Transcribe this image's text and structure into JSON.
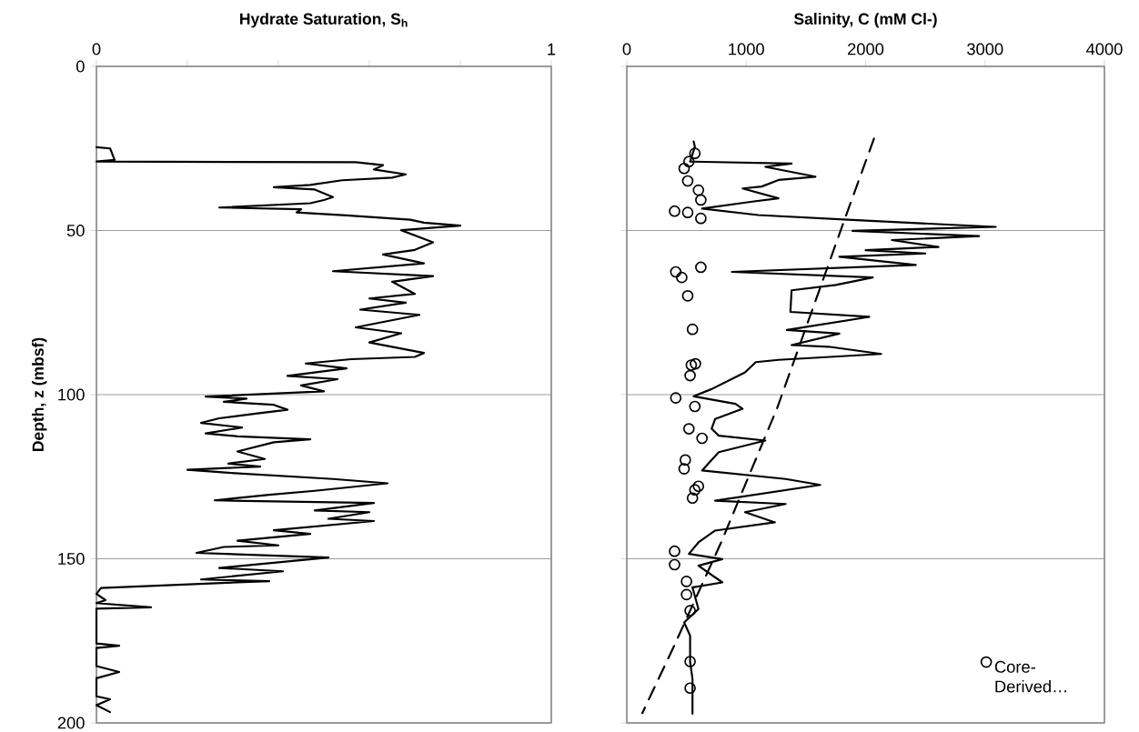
{
  "chart_data": [
    {
      "type": "line",
      "xlabel": "Hydrate Saturation, S$_{h}$",
      "ylabel": "Depth, z (mbsf)",
      "xlim": [
        0,
        1
      ],
      "xticks": [
        0,
        {
          "value": 0.2,
          "label": null
        },
        {
          "value": 0.4,
          "label": null
        },
        {
          "value": 0.6,
          "label": null
        },
        {
          "value": 0.8,
          "label": null
        },
        1
      ],
      "ylim": [
        200,
        0
      ],
      "yticks": [
        0,
        50,
        100,
        150,
        200
      ],
      "grid": "y",
      "series": [
        {
          "color": "#000000",
          "x": [
            0.0,
            0.03,
            0.04,
            0.0,
            0.57,
            0.63,
            0.61,
            0.68,
            0.65,
            0.54,
            0.47,
            0.39,
            0.48,
            0.52,
            0.5,
            0.47,
            0.27,
            0.45,
            0.44,
            0.55,
            0.69,
            0.72,
            0.8,
            0.67,
            0.74,
            0.7,
            0.63,
            0.72,
            0.52,
            0.74,
            0.65,
            0.7,
            0.6,
            0.68,
            0.58,
            0.71,
            0.57,
            0.67,
            0.6,
            0.72,
            0.7,
            0.56,
            0.46,
            0.55,
            0.42,
            0.53,
            0.45,
            0.5,
            0.24,
            0.33,
            0.28,
            0.39,
            0.42,
            0.35,
            0.27,
            0.23,
            0.32,
            0.24,
            0.31,
            0.47,
            0.39,
            0.31,
            0.37,
            0.29,
            0.36,
            0.2,
            0.29,
            0.52,
            0.64,
            0.48,
            0.38,
            0.26,
            0.61,
            0.48,
            0.6,
            0.51,
            0.61,
            0.39,
            0.47,
            0.31,
            0.4,
            0.28,
            0.22,
            0.51,
            0.27,
            0.41,
            0.23,
            0.38,
            0.01,
            0.0,
            0.02,
            0.0,
            0.12,
            0.0,
            0.0,
            0.05,
            0.0,
            0.0,
            0.05,
            0.0,
            0.0,
            0.03,
            0.0,
            0.03
          ],
          "values": [
            24.6,
            25.0,
            28.5,
            29.0,
            29.2,
            30.1,
            31.4,
            32.9,
            33.9,
            34.7,
            36.1,
            36.8,
            37.5,
            39.8,
            40.7,
            41.7,
            43.0,
            43.5,
            44.5,
            45.4,
            46.7,
            47.6,
            48.5,
            49.9,
            53.6,
            55.9,
            57.3,
            60.0,
            62.4,
            63.9,
            65.6,
            69.3,
            70.7,
            72.0,
            74.1,
            75.7,
            79.5,
            81.3,
            84.1,
            87.3,
            88.5,
            89.2,
            90.5,
            92.0,
            94.3,
            95.3,
            97.2,
            99.0,
            100.6,
            101.2,
            102.2,
            103.1,
            104.6,
            105.8,
            107.2,
            108.6,
            110.0,
            111.8,
            112.7,
            113.6,
            114.5,
            117.3,
            119.6,
            121.0,
            121.9,
            122.9,
            123.8,
            125.7,
            127.0,
            129.3,
            130.5,
            132.2,
            133.0,
            135.3,
            135.8,
            137.8,
            138.5,
            141.3,
            142.4,
            144.5,
            145.9,
            146.4,
            148.2,
            149.6,
            152.8,
            153.8,
            156.3,
            156.8,
            158.9,
            160.7,
            162.6,
            163.5,
            164.8,
            165.2,
            175.8,
            176.5,
            177.2,
            182.7,
            184.5,
            186.4,
            191.9,
            192.8,
            194.6,
            196.7
          ]
        }
      ]
    },
    {
      "type": "line",
      "xlabel": "Salinity, C (mM Cl-)",
      "xlim": [
        0,
        4000
      ],
      "xticks": [
        0,
        1000,
        2000,
        3000,
        4000
      ],
      "ylim": [
        200,
        0
      ],
      "yticks": [
        0,
        50,
        100,
        150,
        200
      ],
      "grid": "y",
      "tick_labels": "x",
      "legend": "bottom right",
      "series": [
        {
          "color": "#000000",
          "x": [
            560,
            570,
            530,
            1380,
            1160,
            1580,
            1270,
            1130,
            970,
            1270,
            1050,
            630,
            1100,
            1890,
            3090,
            1890,
            2950,
            2220,
            2610,
            2000,
            2500,
            1780,
            2420,
            880,
            2060,
            1750,
            1380,
            1370,
            2030,
            1340,
            1780,
            1380,
            1690,
            2130,
            1270,
            1080,
            990,
            880,
            710,
            560,
            910,
            970,
            740,
            710,
            770,
            1160,
            770,
            630,
            1330,
            1620,
            740,
            1330,
            990,
            1240,
            740,
            600,
            520,
            800,
            600,
            800,
            550,
            600,
            480,
            530,
            530,
            550,
            550
          ],
          "values": [
            22.9,
            24.5,
            29.0,
            29.6,
            30.6,
            33.6,
            34.6,
            36.6,
            37.2,
            40.2,
            41.2,
            43.3,
            45.3,
            46.8,
            48.9,
            50.1,
            51.7,
            52.9,
            55.0,
            56.0,
            57.0,
            58.0,
            60.5,
            62.6,
            64.3,
            66.6,
            68.2,
            74.8,
            76.3,
            80.3,
            81.4,
            84.9,
            85.4,
            87.6,
            89.4,
            90.1,
            93.2,
            95.2,
            98.3,
            100.5,
            102.8,
            104.3,
            107.4,
            110.4,
            112.5,
            114.0,
            117.5,
            123.1,
            125.7,
            127.5,
            132.3,
            133.3,
            135.8,
            138.9,
            141.4,
            145.0,
            148.5,
            150.1,
            152.1,
            157.2,
            158.7,
            165.3,
            169.4,
            173.4,
            181.5,
            186.6,
            197.2
          ]
        },
        {
          "type": "scatter",
          "name": "Core-Derived…",
          "color": "#000000",
          "marker": "circle",
          "x": [
            570,
            520,
            480,
            510,
            600,
            620,
            400,
            510,
            620,
            620,
            410,
            460,
            510,
            550,
            575,
            540,
            530,
            410,
            570,
            520,
            630,
            490,
            480,
            600,
            570,
            550,
            400,
            400,
            500,
            500,
            530,
            530,
            530
          ],
          "values": [
            26.5,
            29.0,
            31.1,
            34.9,
            37.7,
            40.7,
            44.1,
            44.5,
            46.3,
            61.2,
            62.6,
            64.3,
            69.9,
            80.1,
            90.6,
            91.0,
            94.2,
            101.0,
            103.6,
            110.4,
            113.3,
            119.9,
            122.6,
            127.9,
            129.0,
            131.5,
            147.7,
            151.8,
            156.9,
            160.9,
            165.8,
            181.3,
            189.4
          ]
        },
        {
          "color": "#000000",
          "line_style": "dashed",
          "x": [
            2070,
            1830,
            1260,
            790,
            390,
            130
          ],
          "values": [
            22,
            46,
            104,
            145,
            177,
            197
          ]
        }
      ]
    }
  ]
}
